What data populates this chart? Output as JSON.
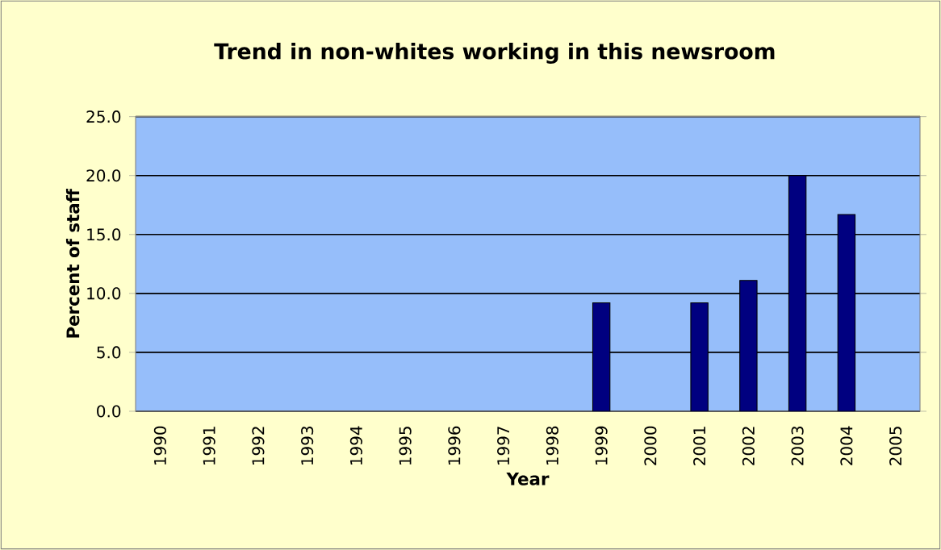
{
  "chart_data": {
    "type": "bar",
    "title": "Trend in non-whites working in this newsroom",
    "xlabel": "Year",
    "ylabel": "Percent of staff",
    "categories": [
      "1990",
      "1991",
      "1992",
      "1993",
      "1994",
      "1995",
      "1996",
      "1997",
      "1998",
      "1999",
      "2000",
      "2001",
      "2002",
      "2003",
      "2004",
      "2005"
    ],
    "values": [
      null,
      null,
      null,
      null,
      null,
      null,
      null,
      null,
      null,
      9.2,
      null,
      9.2,
      11.1,
      20.0,
      16.7,
      null
    ],
    "color": "#000080",
    "ylim": [
      0,
      25
    ],
    "yticks": [
      {
        "value": 0,
        "label": "0.0"
      },
      {
        "value": 5,
        "label": "5.0"
      },
      {
        "value": 10,
        "label": "10.0"
      },
      {
        "value": 15,
        "label": "15.0"
      },
      {
        "value": 20,
        "label": "20.0"
      },
      {
        "value": 25,
        "label": "25.0"
      }
    ],
    "grid": "y"
  }
}
